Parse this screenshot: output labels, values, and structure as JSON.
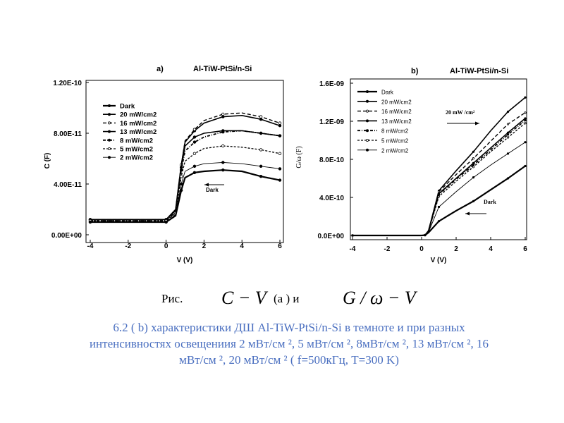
{
  "chart_data": [
    {
      "type": "line",
      "panel_label": "a)",
      "title": "Al-TiW-PtSi/n-Si",
      "xlabel": "V (V)",
      "ylabel": "C (F)",
      "xlim": [
        -4,
        6
      ],
      "ylim": [
        0,
        1.2e-10
      ],
      "x_ticks": [
        "-4",
        "-2",
        "0",
        "2",
        "4",
        "6"
      ],
      "y_ticks": [
        "0.00E+00",
        "4.00E-11",
        "8.00E-11",
        "1.20E-10"
      ],
      "legend": "left",
      "annotation": "Dark",
      "series": [
        {
          "name": "Dark",
          "x": [
            -4,
            -1,
            0,
            0.5,
            0.8,
            1.0,
            1.5,
            2,
            3,
            4,
            5,
            6
          ],
          "y": [
            1e-11,
            1e-11,
            1e-11,
            1.5e-11,
            3.5e-11,
            4.5e-11,
            4.9e-11,
            5e-11,
            5.1e-11,
            5e-11,
            4.6e-11,
            4.3e-11
          ]
        },
        {
          "name": "20 mW/cm2",
          "x": [
            -4,
            -1,
            0,
            0.5,
            0.8,
            1.0,
            1.5,
            2,
            3,
            4,
            5,
            6
          ],
          "y": [
            1.2e-11,
            1.2e-11,
            1.2e-11,
            2e-11,
            5.5e-11,
            7.3e-11,
            8.2e-11,
            8.8e-11,
            9.3e-11,
            9.4e-11,
            9.1e-11,
            8.6e-11
          ]
        },
        {
          "name": "16 mW/cm2",
          "x": [
            -4,
            -1,
            0,
            0.5,
            0.8,
            1.0,
            1.5,
            2,
            3,
            4,
            5,
            6
          ],
          "y": [
            1.2e-11,
            1.2e-11,
            1.2e-11,
            2e-11,
            5.5e-11,
            7.4e-11,
            8.3e-11,
            9e-11,
            9.5e-11,
            9.6e-11,
            9.3e-11,
            8.8e-11
          ]
        },
        {
          "name": "13 mW/cm2",
          "x": [
            -4,
            -1,
            0,
            0.5,
            0.8,
            1.0,
            1.5,
            2,
            3,
            4,
            5,
            6
          ],
          "y": [
            1.2e-11,
            1.2e-11,
            1.2e-11,
            1.9e-11,
            5.3e-11,
            7e-11,
            7.7e-11,
            8e-11,
            8.2e-11,
            8.2e-11,
            8e-11,
            7.8e-11
          ]
        },
        {
          "name": "8 mW/cm2",
          "x": [
            -4,
            -1,
            0,
            0.5,
            0.8,
            1.0,
            1.5,
            2,
            3,
            4,
            5,
            6
          ],
          "y": [
            1.1e-11,
            1.1e-11,
            1.1e-11,
            1.8e-11,
            5.1e-11,
            6.6e-11,
            7.3e-11,
            7.7e-11,
            8.1e-11,
            8.2e-11,
            8e-11,
            7.8e-11
          ]
        },
        {
          "name": "5 mW/cm2",
          "x": [
            -4,
            -1,
            0,
            0.5,
            0.8,
            1.0,
            1.5,
            2,
            3,
            4,
            5,
            6
          ],
          "y": [
            1.1e-11,
            1.1e-11,
            1.1e-11,
            1.7e-11,
            4.6e-11,
            5.8e-11,
            6.4e-11,
            6.8e-11,
            7e-11,
            6.9e-11,
            6.7e-11,
            6.4e-11
          ]
        },
        {
          "name": "2 mW/cm2",
          "x": [
            -4,
            -1,
            0,
            0.5,
            0.8,
            1.0,
            1.5,
            2,
            3,
            4,
            5,
            6
          ],
          "y": [
            1e-11,
            1e-11,
            1e-11,
            1.6e-11,
            4e-11,
            5e-11,
            5.4e-11,
            5.6e-11,
            5.7e-11,
            5.6e-11,
            5.4e-11,
            5.2e-11
          ]
        }
      ]
    },
    {
      "type": "line",
      "panel_label": "b)",
      "title": "Al-TiW-PtSi/n-Si",
      "xlabel": "V (V)",
      "ylabel": "G/ω (F)",
      "xlim": [
        -4,
        6
      ],
      "ylim": [
        0,
        1.6e-09
      ],
      "x_ticks": [
        "-4",
        "-2",
        "0",
        "2",
        "4",
        "6"
      ],
      "y_ticks": [
        "0.0E+00",
        "4.0E-10",
        "8.0E-10",
        "1.2E-09",
        "1.6E-09"
      ],
      "legend": "left",
      "annotations": [
        "20 mW /cm²",
        "Dark"
      ],
      "series": [
        {
          "name": "Dark",
          "x": [
            -4,
            0,
            0.2,
            0.4,
            1,
            2,
            3,
            4,
            5,
            6
          ],
          "y": [
            0,
            0,
            3e-12,
            3e-11,
            1.5e-10,
            2.6e-10,
            3.6e-10,
            4.8e-10,
            6e-10,
            7.3e-10
          ]
        },
        {
          "name": "20 mW/cm2",
          "x": [
            -4,
            0,
            0.2,
            0.4,
            1,
            2,
            3,
            4,
            5,
            6
          ],
          "y": [
            0,
            0,
            4e-12,
            5e-11,
            4.7e-10,
            6.8e-10,
            8.8e-10,
            1.1e-09,
            1.3e-09,
            1.45e-09
          ]
        },
        {
          "name": "16 mW/cm2",
          "x": [
            -4,
            0,
            0.2,
            0.4,
            1,
            2,
            3,
            4,
            5,
            6
          ],
          "y": [
            0,
            0,
            4e-12,
            5e-11,
            4.6e-10,
            6.4e-10,
            8.1e-10,
            9.9e-10,
            1.17e-09,
            1.29e-09
          ]
        },
        {
          "name": "13 mW/cm2",
          "x": [
            -4,
            0,
            0.2,
            0.4,
            1,
            2,
            3,
            4,
            5,
            6
          ],
          "y": [
            0,
            0,
            4e-12,
            5e-11,
            4.4e-10,
            6e-10,
            7.6e-10,
            9.2e-10,
            1.08e-09,
            1.23e-09
          ]
        },
        {
          "name": "8 mW/cm2",
          "x": [
            -4,
            0,
            0.2,
            0.4,
            1,
            2,
            3,
            4,
            5,
            6
          ],
          "y": [
            0,
            0,
            4e-12,
            4.5e-11,
            4.3e-10,
            5.9e-10,
            7.4e-10,
            9e-10,
            1.06e-09,
            1.21e-09
          ]
        },
        {
          "name": "5 mW/cm2",
          "x": [
            -4,
            0,
            0.2,
            0.4,
            1,
            2,
            3,
            4,
            5,
            6
          ],
          "y": [
            0,
            0,
            4e-12,
            4e-11,
            4.1e-10,
            5.7e-10,
            7.2e-10,
            8.8e-10,
            1.03e-09,
            1.18e-09
          ]
        },
        {
          "name": "2 mW/cm2",
          "x": [
            -4,
            0,
            0.2,
            0.4,
            1,
            2,
            3,
            4,
            5,
            6
          ],
          "y": [
            0,
            0,
            3e-12,
            3.5e-11,
            3e-10,
            4.6e-10,
            6.1e-10,
            7.4e-10,
            8.6e-10,
            9.8e-10
          ]
        }
      ]
    }
  ],
  "caption": {
    "ris": "Рис.",
    "formula_cv": "C − V",
    "a_and": "(а )  и",
    "formula_gv": "G / ω − V",
    "line1": "6.2 ( b)  характеристики ДШ Al-TiW-PtSi/n-Si в темноте и при разных",
    "line2": "интенсивностях освещениия 2 мВт/см ², 5 мВт/см ²,  8мВт/см ², 13 мВт/см ², 16",
    "line3": "мВт/см ², 20 мВт/см ² ( f=500кГц, T=300 K)"
  }
}
